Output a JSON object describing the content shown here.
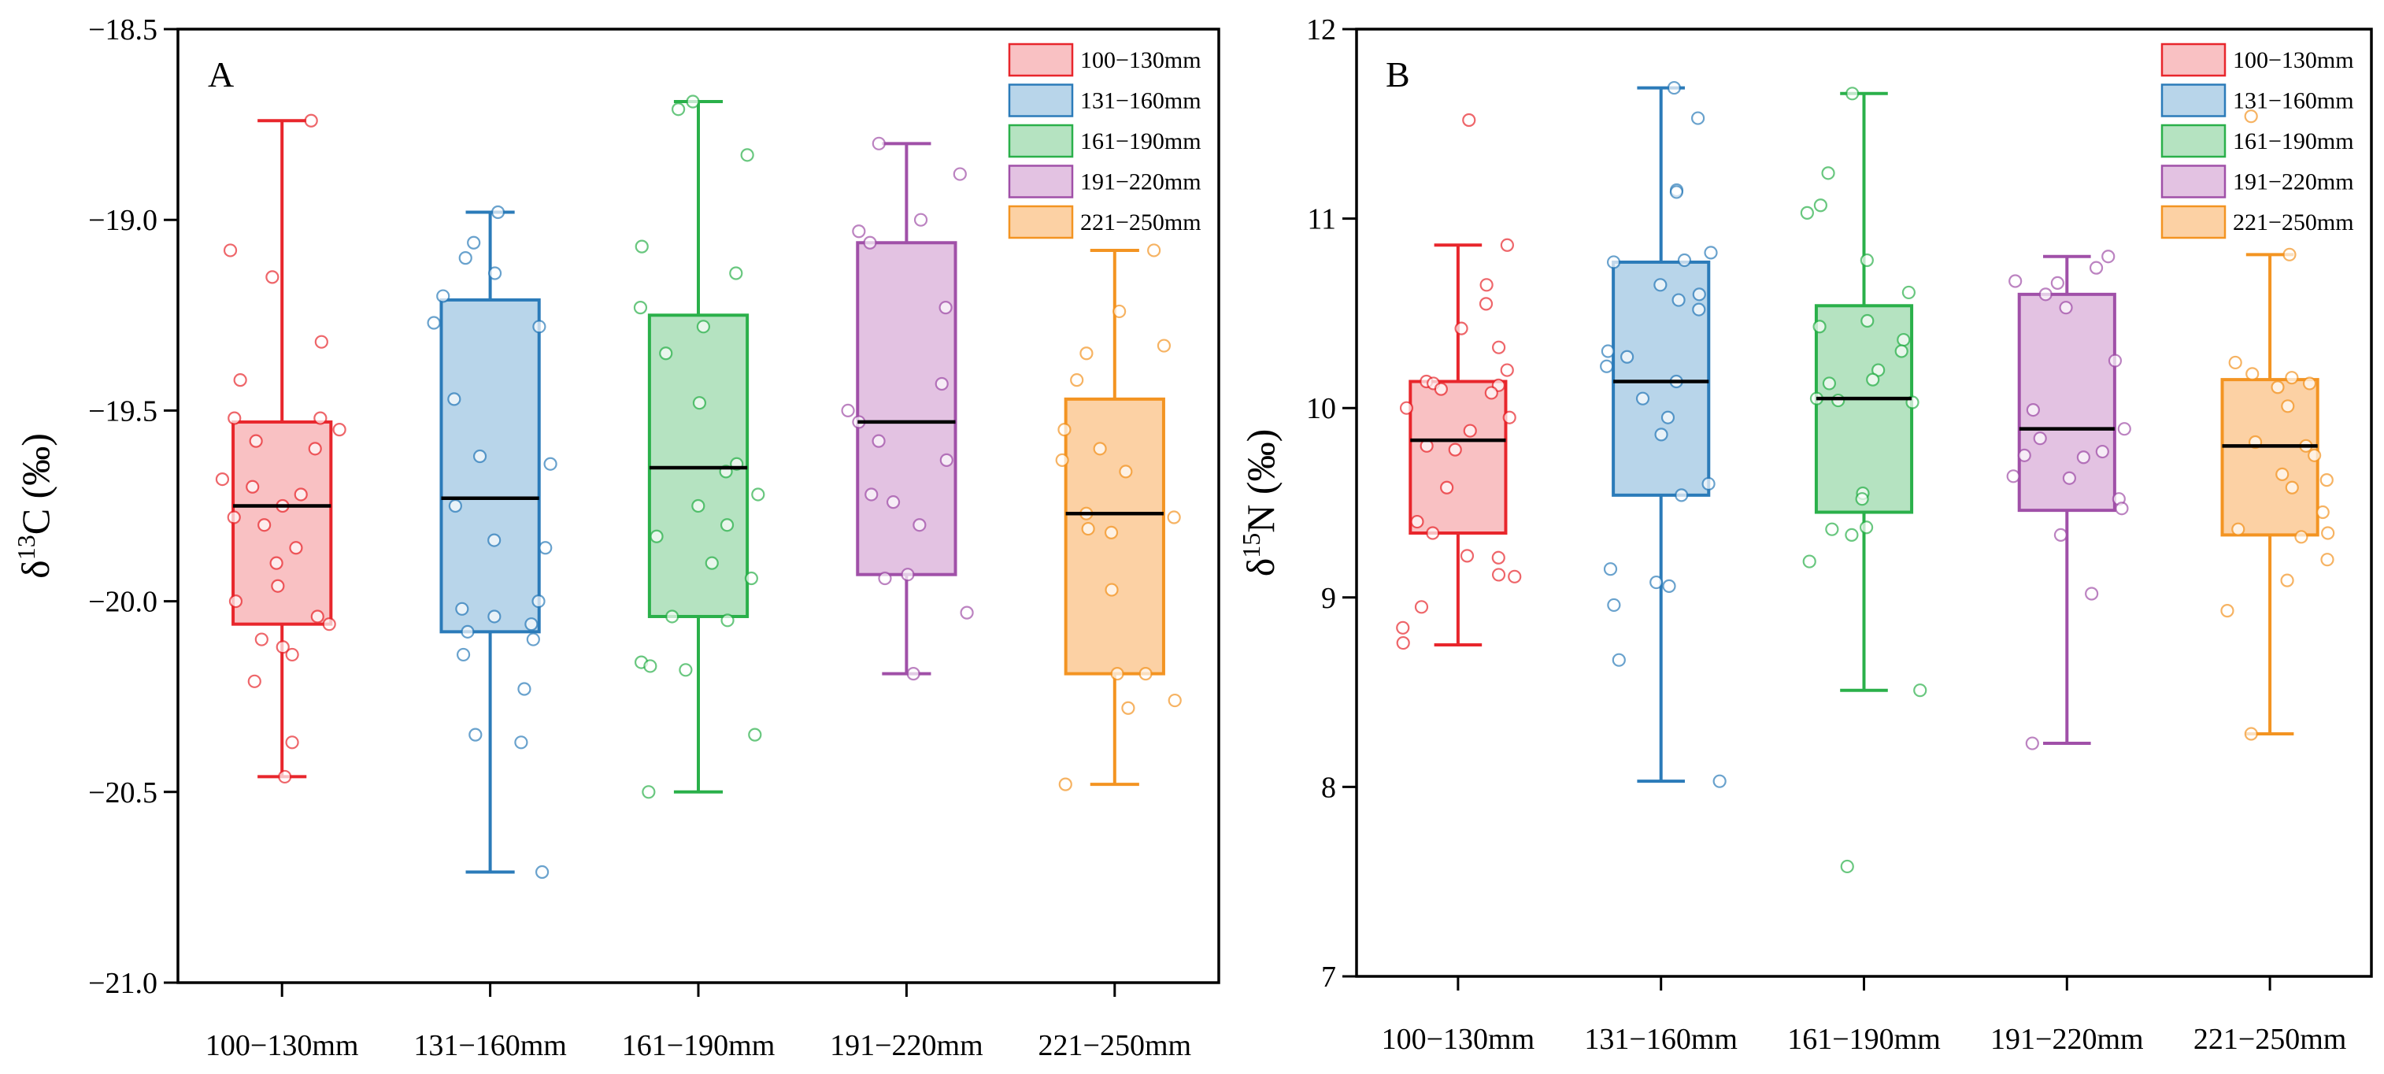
{
  "legend_items": [
    "100−130mm",
    "131−160mm",
    "161−190mm",
    "191−220mm",
    "221−250mm"
  ],
  "colors": {
    "stroke": [
      "#e8262c",
      "#2b7bb9",
      "#2ab04a",
      "#a050a8",
      "#f39422"
    ],
    "fill": [
      "#f9c1c3",
      "#b8d5ea",
      "#b5e3c1",
      "#e3c2e2",
      "#fcd1a4"
    ]
  },
  "chart_data": [
    {
      "type": "box",
      "panel_label": "A",
      "ylabel_main": "δ",
      "ylabel_sup": "13",
      "ylabel_rest": "C (‰)",
      "ylim": [
        -21.0,
        -18.5
      ],
      "yticks": [
        -21.0,
        -20.5,
        -20.0,
        -19.5,
        -19.0,
        -18.5
      ],
      "ytick_labels": [
        "−21.0",
        "−20.5",
        "−20.0",
        "−19.5",
        "−19.0",
        "−18.5"
      ],
      "categories": [
        "100−130mm",
        "131−160mm",
        "161−190mm",
        "191−220mm",
        "221−250mm"
      ],
      "legend_position": "top-right",
      "boxes": [
        {
          "min": -20.46,
          "q1": -20.06,
          "median": -19.75,
          "q3": -19.53,
          "max": -18.74
        },
        {
          "min": -20.71,
          "q1": -20.08,
          "median": -19.73,
          "q3": -19.21,
          "max": -18.98
        },
        {
          "min": -20.5,
          "q1": -20.04,
          "median": -19.65,
          "q3": -19.25,
          "max": -18.69
        },
        {
          "min": -20.19,
          "q1": -19.93,
          "median": -19.53,
          "q3": -19.06,
          "max": -18.8
        },
        {
          "min": -20.48,
          "q1": -20.19,
          "median": -19.77,
          "q3": -19.47,
          "max": -19.08
        }
      ],
      "points": [
        [
          -18.74,
          -19.08,
          -19.15,
          -19.32,
          -19.42,
          -19.52,
          -19.52,
          -19.55,
          -19.58,
          -19.6,
          -19.68,
          -19.7,
          -19.72,
          -19.75,
          -19.78,
          -19.8,
          -19.86,
          -19.9,
          -19.96,
          -20.0,
          -20.04,
          -20.06,
          -20.1,
          -20.12,
          -20.14,
          -20.21,
          -20.37,
          -20.46
        ],
        [
          -18.98,
          -19.06,
          -19.1,
          -19.14,
          -19.2,
          -19.27,
          -19.28,
          -19.47,
          -19.62,
          -19.64,
          -19.75,
          -19.84,
          -19.86,
          -20.0,
          -20.02,
          -20.04,
          -20.06,
          -20.08,
          -20.1,
          -20.14,
          -20.23,
          -20.35,
          -20.37,
          -20.71
        ],
        [
          -18.69,
          -18.71,
          -18.83,
          -19.07,
          -19.14,
          -19.23,
          -19.28,
          -19.35,
          -19.48,
          -19.64,
          -19.66,
          -19.72,
          -19.75,
          -19.8,
          -19.83,
          -19.9,
          -19.94,
          -20.04,
          -20.05,
          -20.16,
          -20.17,
          -20.18,
          -20.35,
          -20.5
        ],
        [
          -18.8,
          -18.88,
          -19.0,
          -19.03,
          -19.06,
          -19.23,
          -19.43,
          -19.5,
          -19.53,
          -19.58,
          -19.63,
          -19.72,
          -19.74,
          -19.8,
          -19.93,
          -19.94,
          -20.03,
          -20.19
        ],
        [
          -19.08,
          -19.24,
          -19.33,
          -19.35,
          -19.42,
          -19.55,
          -19.6,
          -19.63,
          -19.66,
          -19.77,
          -19.78,
          -19.81,
          -19.82,
          -19.97,
          -20.19,
          -20.19,
          -20.26,
          -20.28,
          -20.48
        ]
      ]
    },
    {
      "type": "box",
      "panel_label": "B",
      "ylabel_main": "δ",
      "ylabel_sup": "15",
      "ylabel_rest": "N (‰)",
      "ylim": [
        7,
        12
      ],
      "yticks": [
        7,
        8,
        9,
        10,
        11,
        12
      ],
      "ytick_labels": [
        "7",
        "8",
        "9",
        "10",
        "11",
        "12"
      ],
      "categories": [
        "100−130mm",
        "131−160mm",
        "161−190mm",
        "191−220mm",
        "221−250mm"
      ],
      "legend_position": "top-right",
      "boxes": [
        {
          "min": 8.75,
          "q1": 9.34,
          "median": 9.83,
          "q3": 10.14,
          "max": 10.86
        },
        {
          "min": 8.03,
          "q1": 9.54,
          "median": 10.14,
          "q3": 10.77,
          "max": 11.69
        },
        {
          "min": 8.51,
          "q1": 9.45,
          "median": 10.05,
          "q3": 10.54,
          "max": 11.66
        },
        {
          "min": 8.23,
          "q1": 9.46,
          "median": 9.89,
          "q3": 10.6,
          "max": 10.8
        },
        {
          "min": 8.28,
          "q1": 9.33,
          "median": 9.8,
          "q3": 10.15,
          "max": 10.81
        }
      ],
      "points": [
        [
          11.52,
          10.86,
          10.65,
          10.55,
          10.42,
          10.32,
          10.2,
          10.14,
          10.13,
          10.12,
          10.1,
          10.08,
          10.0,
          9.95,
          9.88,
          9.8,
          9.78,
          9.58,
          9.4,
          9.34,
          9.22,
          9.21,
          9.12,
          9.11,
          8.95,
          8.84,
          8.76
        ],
        [
          11.69,
          11.53,
          11.15,
          11.14,
          10.82,
          10.78,
          10.77,
          10.65,
          10.6,
          10.57,
          10.52,
          10.3,
          10.27,
          10.22,
          10.14,
          10.05,
          9.95,
          9.86,
          9.6,
          9.54,
          9.15,
          9.08,
          9.06,
          8.96,
          8.67,
          8.03
        ],
        [
          11.66,
          11.24,
          11.07,
          11.03,
          10.78,
          10.61,
          10.46,
          10.43,
          10.36,
          10.3,
          10.2,
          10.15,
          10.13,
          10.05,
          10.04,
          10.03,
          9.55,
          9.52,
          9.37,
          9.36,
          9.33,
          9.19,
          8.51,
          7.58
        ],
        [
          10.8,
          10.74,
          10.67,
          10.66,
          10.6,
          10.53,
          10.25,
          9.99,
          9.89,
          9.84,
          9.77,
          9.75,
          9.74,
          9.64,
          9.63,
          9.52,
          9.47,
          9.33,
          9.02,
          8.23
        ],
        [
          11.54,
          10.81,
          10.24,
          10.18,
          10.16,
          10.13,
          10.11,
          10.01,
          9.82,
          9.8,
          9.75,
          9.65,
          9.62,
          9.58,
          9.45,
          9.36,
          9.34,
          9.32,
          9.2,
          9.09,
          8.93,
          8.28
        ]
      ]
    }
  ]
}
